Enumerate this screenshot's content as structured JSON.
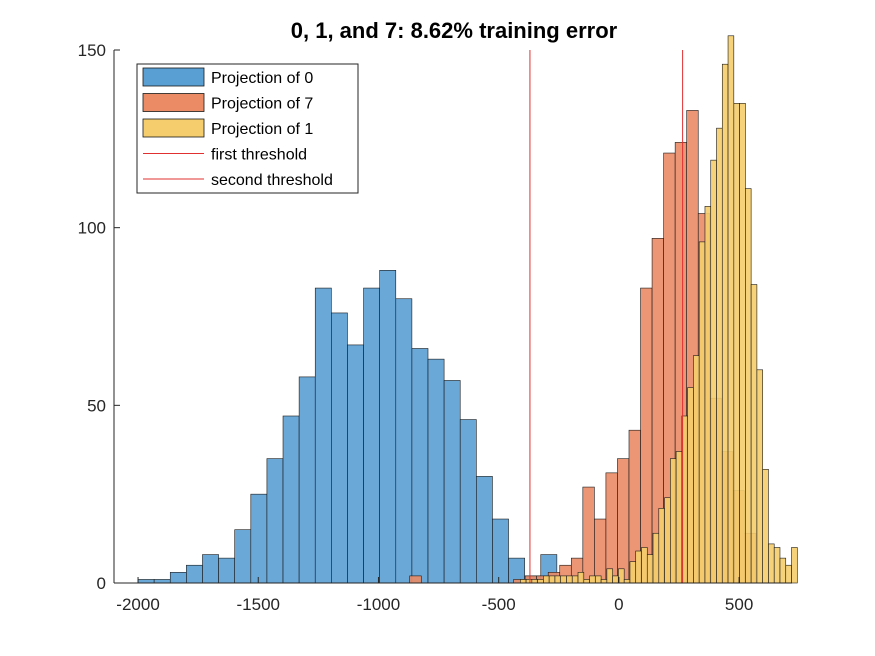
{
  "chart_data": {
    "type": "histogram",
    "title": "0, 1, and 7: 8.62% training error",
    "xlabel": "",
    "ylabel": "",
    "xlim": [
      -2100,
      720
    ],
    "ylim": [
      0,
      150
    ],
    "xticks": [
      -2000,
      -1500,
      -1000,
      -500,
      0,
      500
    ],
    "xtick_labels": [
      "-2000",
      "-1500",
      "-1000",
      "-500",
      "0",
      "500"
    ],
    "yticks": [
      0,
      50,
      100,
      150
    ],
    "ytick_labels": [
      "0",
      "50",
      "100",
      "150"
    ],
    "grid": false,
    "legend_position": "top-left",
    "series": [
      {
        "name": "Projection of 0",
        "color": "#5a9fd4",
        "bin_start": -2000,
        "bin_width": 67,
        "values": [
          1,
          1,
          3,
          5,
          8,
          7,
          15,
          25,
          35,
          47,
          58,
          83,
          76,
          67,
          83,
          88,
          80,
          66,
          63,
          57,
          46,
          30,
          18,
          7,
          2,
          8
        ]
      },
      {
        "name": "Projection of 7",
        "color": "#ea8b66",
        "bin_start": -870,
        "bin_width": 48,
        "values": [
          2,
          0,
          0,
          0,
          0,
          0,
          0,
          0,
          0,
          1,
          2,
          2,
          3,
          5,
          7,
          27,
          18,
          31,
          35,
          43,
          83,
          97,
          121,
          124,
          133,
          104,
          52,
          37,
          26,
          14
        ]
      },
      {
        "name": "Projection of 1",
        "color": "#f5cd6c",
        "bin_start": -410,
        "bin_width": 24,
        "values": [
          1,
          1,
          1,
          1,
          2,
          2,
          2,
          2,
          2,
          2,
          3,
          1,
          2,
          2,
          1,
          4,
          2,
          4,
          1,
          6,
          9,
          10,
          8,
          14,
          21,
          24,
          35,
          37,
          47,
          55,
          64,
          96,
          106,
          119,
          128,
          146,
          154,
          135,
          135,
          111,
          84,
          60,
          32,
          11,
          10,
          7,
          5,
          10
        ]
      }
    ],
    "thresholds": [
      {
        "name": "first threshold",
        "x": -370,
        "color": "#e03030"
      },
      {
        "name": "second threshold",
        "x": 265,
        "color": "#e03030"
      }
    ]
  }
}
